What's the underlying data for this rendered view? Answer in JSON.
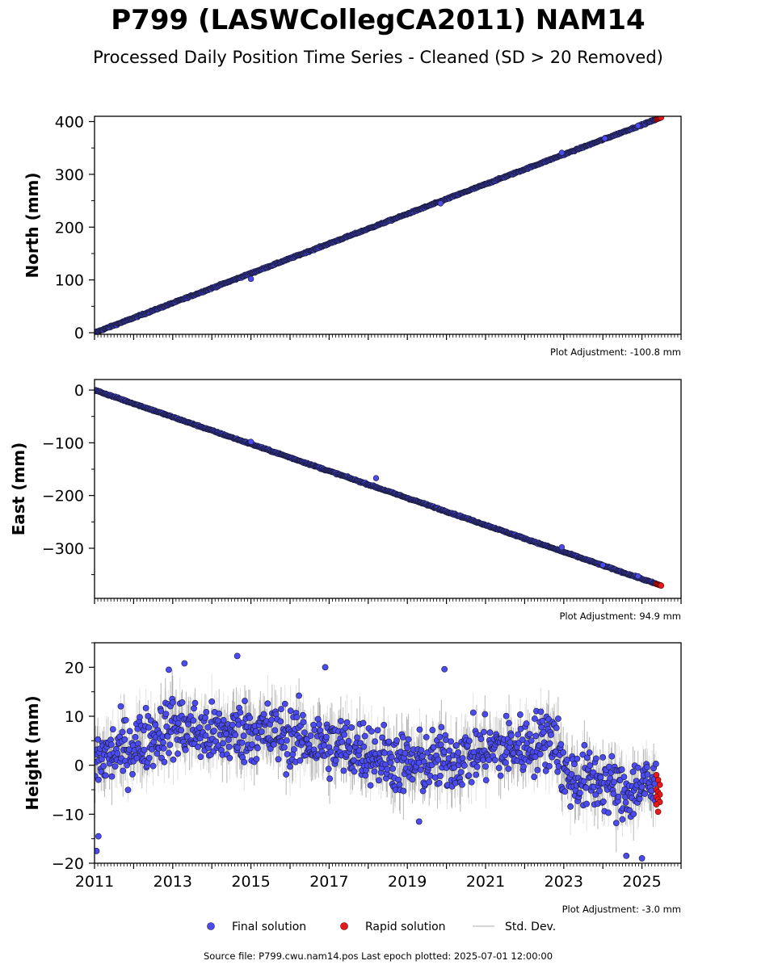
{
  "header": {
    "title": "P799 (LASWCollegCA2011) NAM14",
    "subtitle": "Processed Daily Position Time Series - Cleaned (SD > 20 Removed)"
  },
  "legend": {
    "final_label": "Final solution",
    "rapid_label": "Rapid solution",
    "std_label": "Std. Dev."
  },
  "footer": {
    "source": "Source file: P799.cwu.nam14.pos  Last epoch plotted: 2025-07-01 12:00:00"
  },
  "colors": {
    "final": "#4b4bef",
    "rapid": "#e41a1c",
    "std": "#c8c8c8",
    "edge": "#1a1a3a"
  },
  "chart_data": [
    {
      "type": "scatter",
      "panel": "north",
      "ylabel": "North (mm)",
      "adjustment": "Plot Adjustment: -100.8 mm",
      "xlim": [
        2011.0,
        2026.0
      ],
      "ylim": [
        -3,
        410
      ],
      "yticks": [
        0,
        100,
        200,
        300,
        400
      ],
      "ytick_labels": [
        "0",
        "100",
        "200",
        "300",
        "400"
      ],
      "trend": {
        "start_year": 2011.0,
        "start_value": 0,
        "end_year": 2025.5,
        "end_value": 408
      },
      "scatter_mm": 1.0,
      "outliers": [
        [
          2015.0,
          102
        ],
        [
          2019.85,
          245
        ],
        [
          2022.95,
          341
        ],
        [
          2024.05,
          368
        ],
        [
          2024.9,
          392
        ]
      ],
      "rapid_range": [
        2025.37,
        2025.5
      ],
      "last_epoch": "2025-07-01 12:00:00",
      "grid": false
    },
    {
      "type": "scatter",
      "panel": "east",
      "ylabel": "East (mm)",
      "adjustment": "Plot Adjustment: 94.9 mm",
      "xlim": [
        2011.0,
        2026.0
      ],
      "ylim": [
        -395,
        20
      ],
      "yticks": [
        0,
        -100,
        -200,
        -300
      ],
      "ytick_labels": [
        "0",
        "−100",
        "−200",
        "−300"
      ],
      "trend": {
        "start_year": 2011.0,
        "start_value": 0,
        "end_year": 2025.5,
        "end_value": -371
      },
      "scatter_mm": 1.0,
      "outliers": [
        [
          2015.0,
          -98
        ],
        [
          2018.2,
          -167
        ],
        [
          2022.95,
          -298
        ],
        [
          2024.0,
          -332
        ],
        [
          2024.9,
          -353
        ]
      ],
      "rapid_range": [
        2025.37,
        2025.5
      ],
      "last_epoch": "2025-07-01 12:00:00",
      "grid": false
    },
    {
      "type": "scatter",
      "panel": "height",
      "ylabel": "Height (mm)",
      "adjustment": "Plot Adjustment: -3.0 mm",
      "xlim": [
        2011.0,
        2026.0
      ],
      "ylim": [
        -20,
        25
      ],
      "yticks": [
        20,
        10,
        0,
        -10,
        -20
      ],
      "ytick_labels": [
        "20",
        "10",
        "0",
        "−10",
        "−20"
      ],
      "xticks": [
        2011,
        2013,
        2015,
        2017,
        2019,
        2021,
        2023,
        2025
      ],
      "xtick_labels": [
        "2011",
        "2013",
        "2015",
        "2017",
        "2019",
        "2021",
        "2023",
        "2025"
      ],
      "mean_profile": [
        [
          2011.0,
          1
        ],
        [
          2012.0,
          4
        ],
        [
          2013.0,
          8
        ],
        [
          2014.0,
          6
        ],
        [
          2015.0,
          7
        ],
        [
          2016.0,
          6
        ],
        [
          2017.0,
          4
        ],
        [
          2018.0,
          3
        ],
        [
          2019.0,
          0
        ],
        [
          2020.0,
          1
        ],
        [
          2021.0,
          3
        ],
        [
          2022.0,
          4
        ],
        [
          2022.8,
          6
        ],
        [
          2023.0,
          -2
        ],
        [
          2023.5,
          -3
        ],
        [
          2024.0,
          -3
        ],
        [
          2024.5,
          -6
        ],
        [
          2025.0,
          -4
        ],
        [
          2025.5,
          -5
        ]
      ],
      "scatter_mm": 4.5,
      "std_mm": 4.0,
      "outliers": [
        [
          2011.05,
          -17.5
        ],
        [
          2011.1,
          -14.5
        ],
        [
          2013.3,
          20.8
        ],
        [
          2014.65,
          22.3
        ],
        [
          2016.9,
          20.0
        ],
        [
          2019.95,
          19.6
        ],
        [
          2025.0,
          -19.0
        ],
        [
          2024.6,
          -18.5
        ],
        [
          2019.3,
          -11.5
        ],
        [
          2012.9,
          19.5
        ]
      ],
      "rapid_range": [
        2025.37,
        2025.5
      ],
      "rapid_values": [
        -2,
        -3,
        -4,
        -5,
        -5.5,
        -6,
        -6.5,
        -7,
        -7.5,
        -8,
        -9.5
      ],
      "last_epoch": "2025-07-01 12:00:00",
      "grid": false
    }
  ]
}
